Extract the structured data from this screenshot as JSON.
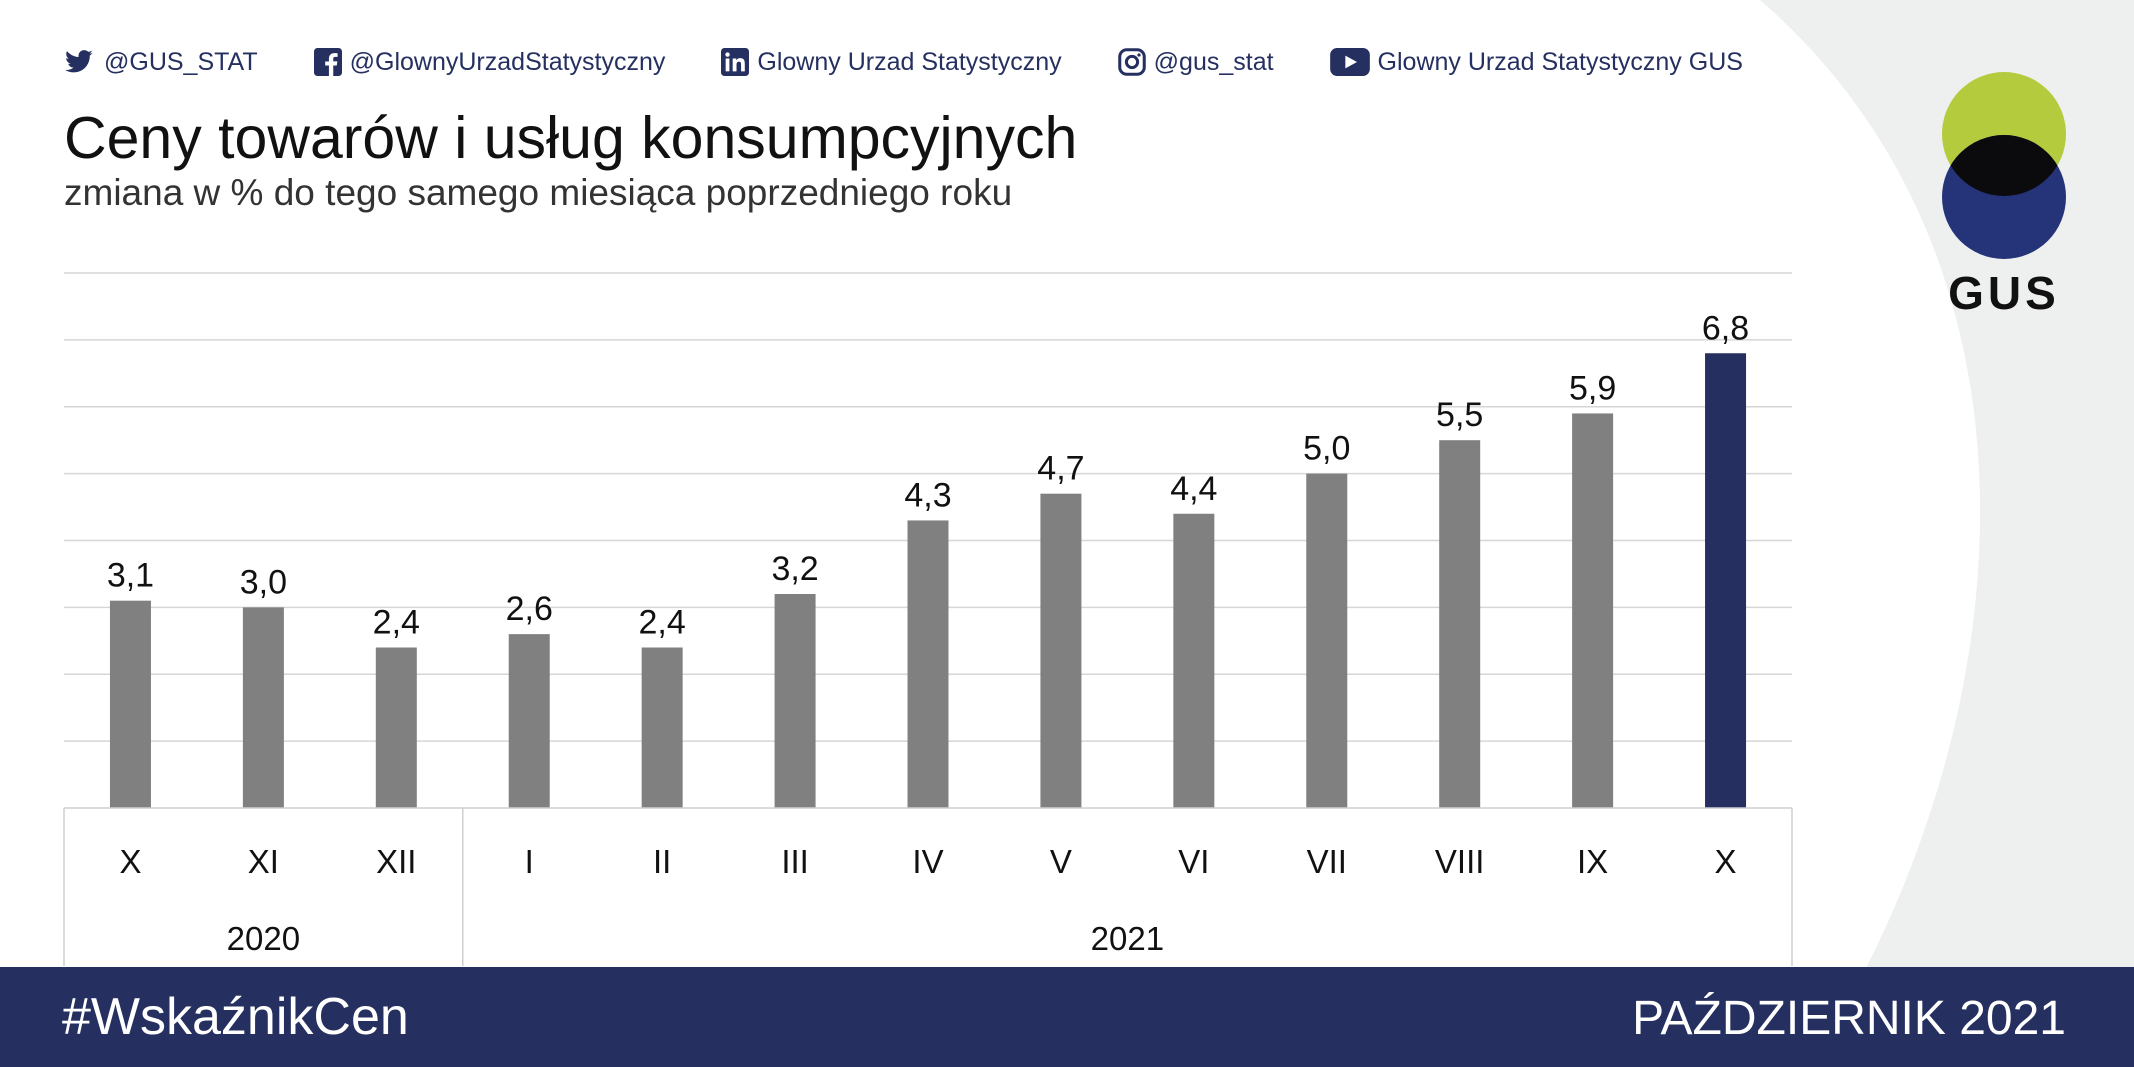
{
  "social": [
    {
      "icon": "twitter-icon",
      "label": "@GUS_STAT"
    },
    {
      "icon": "facebook-icon",
      "label": "@GlownyUrzadStatystyczny"
    },
    {
      "icon": "linkedin-icon",
      "label": "Glowny Urzad Statystyczny"
    },
    {
      "icon": "instagram-icon",
      "label": "@gus_stat"
    },
    {
      "icon": "youtube-icon",
      "label": "Glowny Urzad Statystyczny GUS"
    }
  ],
  "logo": {
    "text": "GUS"
  },
  "footer": {
    "hashtag": "#WskaźnikCen",
    "month": "PAŹDZIERNIK 2021"
  },
  "colors": {
    "bar": "#808080",
    "highlight": "#253060",
    "footer": "#253060",
    "logo_green": "#b4cb3d",
    "logo_blue": "#253478",
    "logo_overlap": "#0b0b0e"
  },
  "chart_data": {
    "type": "bar",
    "title": "Ceny towarów i usług konsumpcyjnych",
    "subtitle": "zmiana w % do tego samego miesiąca poprzedniego roku",
    "categories": [
      "X",
      "XI",
      "XII",
      "I",
      "II",
      "III",
      "IV",
      "V",
      "VI",
      "VII",
      "VIII",
      "IX",
      "X"
    ],
    "values": [
      3.1,
      3.0,
      2.4,
      2.6,
      2.4,
      3.2,
      4.3,
      4.7,
      4.4,
      5.0,
      5.5,
      5.9,
      6.8
    ],
    "value_labels": [
      "3,1",
      "3,0",
      "2,4",
      "2,6",
      "2,4",
      "3,2",
      "4,3",
      "4,7",
      "4,4",
      "5,0",
      "5,5",
      "5,9",
      "6,8"
    ],
    "highlight_index": 12,
    "groups": [
      {
        "label": "2020",
        "count": 3
      },
      {
        "label": "2021",
        "count": 10
      }
    ],
    "ylim": [
      0,
      8
    ],
    "grid": true,
    "legend": "none"
  }
}
